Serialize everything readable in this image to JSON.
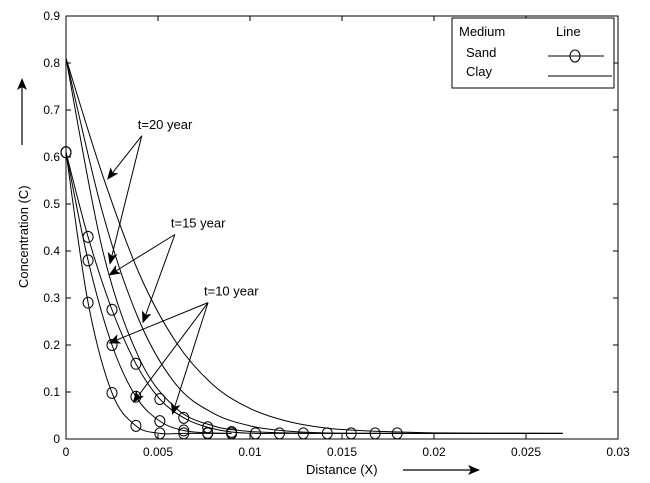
{
  "chart_data": {
    "type": "line",
    "title": "",
    "xlabel": "Distance (X)",
    "ylabel": "Concentration (C)",
    "xlim": [
      0,
      0.03
    ],
    "ylim": [
      0,
      0.9
    ],
    "x_ticks": [
      0,
      0.005,
      0.01,
      0.015,
      0.02,
      0.025,
      0.03
    ],
    "x_tick_labels": [
      "0",
      "0.005",
      "0.01",
      "0.015",
      "0.02",
      "0.025",
      "0.03"
    ],
    "y_ticks": [
      0,
      0.1,
      0.2,
      0.3,
      0.4,
      0.5,
      0.6,
      0.7,
      0.8,
      0.9
    ],
    "y_tick_labels": [
      "0",
      "0.1",
      "0.2",
      "0.3",
      "0.4",
      "0.5",
      "0.6",
      "0.7",
      "0.8",
      "0.9"
    ],
    "grid": false,
    "legend": {
      "position": "top-right",
      "header_medium": "Medium",
      "header_line": "Line",
      "entries": [
        {
          "label": "Sand",
          "marker": "circle"
        },
        {
          "label": "Clay",
          "marker": "none"
        }
      ]
    },
    "series": [
      {
        "medium": "Clay",
        "time": "t=20 year",
        "marker": "none",
        "x": [
          0,
          0.002,
          0.004,
          0.006,
          0.008,
          0.01,
          0.012,
          0.014,
          0.016,
          0.02,
          0.027
        ],
        "y": [
          0.81,
          0.56,
          0.35,
          0.205,
          0.115,
          0.065,
          0.038,
          0.024,
          0.018,
          0.013,
          0.012
        ]
      },
      {
        "medium": "Clay",
        "time": "t=15 year",
        "marker": "none",
        "x": [
          0,
          0.002,
          0.004,
          0.006,
          0.008,
          0.01,
          0.012,
          0.014,
          0.016,
          0.02,
          0.027
        ],
        "y": [
          0.81,
          0.48,
          0.25,
          0.115,
          0.055,
          0.028,
          0.017,
          0.013,
          0.012,
          0.012,
          0.012
        ]
      },
      {
        "medium": "Clay",
        "time": "t=10 year",
        "marker": "none",
        "x": [
          0,
          0.002,
          0.004,
          0.006,
          0.008,
          0.01,
          0.012,
          0.014,
          0.016,
          0.02,
          0.027
        ],
        "y": [
          0.81,
          0.4,
          0.17,
          0.065,
          0.028,
          0.016,
          0.013,
          0.012,
          0.012,
          0.012,
          0.012
        ]
      },
      {
        "medium": "Sand",
        "time": "t=20 year",
        "marker": "circle",
        "x": [
          0,
          0.0012,
          0.0025,
          0.0038,
          0.0051,
          0.0064,
          0.0077,
          0.009,
          0.0103,
          0.0116,
          0.0129,
          0.0142,
          0.0155,
          0.0168,
          0.018
        ],
        "y": [
          0.61,
          0.43,
          0.275,
          0.16,
          0.085,
          0.045,
          0.025,
          0.015,
          0.012,
          0.012,
          0.012,
          0.012,
          0.012,
          0.012,
          0.012
        ]
      },
      {
        "medium": "Sand",
        "time": "t=15 year",
        "marker": "circle",
        "x": [
          0,
          0.0012,
          0.0025,
          0.0038,
          0.0051,
          0.0064,
          0.0077,
          0.009
        ],
        "y": [
          0.61,
          0.38,
          0.2,
          0.09,
          0.038,
          0.018,
          0.013,
          0.012
        ]
      },
      {
        "medium": "Sand",
        "time": "t=10 year",
        "marker": "circle",
        "x": [
          0,
          0.0012,
          0.0025,
          0.0038,
          0.0051,
          0.0064,
          0.0077,
          0.009
        ],
        "y": [
          0.61,
          0.29,
          0.098,
          0.028,
          0.012,
          0.012,
          0.012,
          0.012
        ]
      }
    ],
    "annotations": [
      {
        "text": "t=20 year",
        "anchor": [
          0.0039,
          0.66
        ],
        "arrows_to": [
          [
            0.0024,
            0.375
          ],
          [
            0.0023,
            0.555
          ]
        ]
      },
      {
        "text": "t=15 year",
        "anchor": [
          0.0057,
          0.45
        ],
        "arrows_to": [
          [
            0.0024,
            0.35
          ],
          [
            0.0042,
            0.25
          ]
        ]
      },
      {
        "text": "t=10 year",
        "anchor": [
          0.0075,
          0.305
        ],
        "arrows_to": [
          [
            0.0024,
            0.205
          ],
          [
            0.0037,
            0.08
          ],
          [
            0.0058,
            0.055
          ]
        ]
      }
    ],
    "axis_arrows": true
  }
}
